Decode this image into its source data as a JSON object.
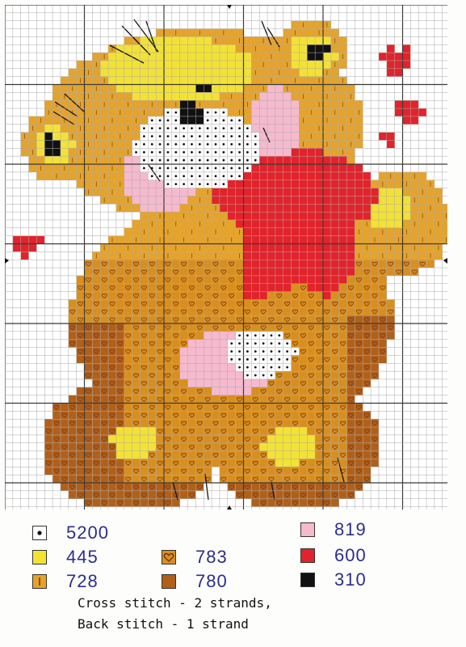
{
  "palette": {
    "white": "#ffffff",
    "grid_fine": "#a9a9a9",
    "grid_major": "#3a3a3a",
    "yellow_445": "#f3e234",
    "gold_728": "#e6a32a",
    "orange_783": "#d98f1e",
    "brown_780": "#b1601a",
    "pink_819": "#f6b9cd",
    "red_600": "#e2232b",
    "black_310": "#111111",
    "heart_symbol": "#7a3510"
  },
  "legend": [
    {
      "code": "5200",
      "symbol": "dot-icon",
      "swatch": "#ffffff"
    },
    {
      "code": "445",
      "symbol": "solid-yellow",
      "swatch": "#f3e234"
    },
    {
      "code": "728",
      "symbol": "vertical-bar-icon",
      "swatch": "#e6a32a"
    },
    {
      "code": "783",
      "symbol": "heart-icon",
      "swatch": "#d98f1e"
    },
    {
      "code": "780",
      "symbol": "solid-brown",
      "swatch": "#b1601a"
    },
    {
      "code": "819",
      "symbol": "solid-pink",
      "swatch": "#f6b9cd"
    },
    {
      "code": "600",
      "symbol": "solid-red",
      "swatch": "#e2232b"
    },
    {
      "code": "310",
      "symbol": "solid-black",
      "swatch": "#111111"
    }
  ],
  "instructions": {
    "line1": "Cross stitch - 2 strands,",
    "line2": "Back stitch - 1 strand"
  }
}
